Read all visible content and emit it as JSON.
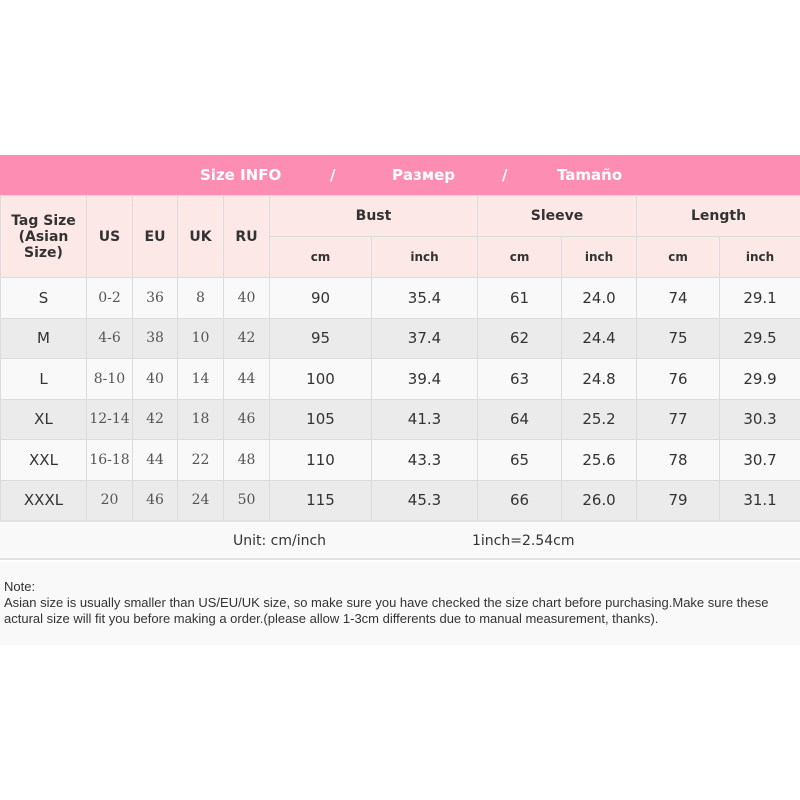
{
  "banner": {
    "title": "Size INFO",
    "sep1": "/",
    "ru": "Размер",
    "sep2": "/",
    "es": "Tamaño"
  },
  "headers": {
    "tag_size": "Tag Size (Asian Size)",
    "us": "US",
    "eu": "EU",
    "uk": "UK",
    "ru": "RU",
    "bust": "Bust",
    "sleeve": "Sleeve",
    "length": "Length",
    "cm": "cm",
    "inch": "inch"
  },
  "rows": [
    {
      "tag": "S",
      "us": "0-2",
      "eu": "36",
      "uk": "8",
      "ru": "40",
      "bust_cm": "90",
      "bust_in": "35.4",
      "sleeve_cm": "61",
      "sleeve_in": "24.0",
      "length_cm": "74",
      "length_in": "29.1"
    },
    {
      "tag": "M",
      "us": "4-6",
      "eu": "38",
      "uk": "10",
      "ru": "42",
      "bust_cm": "95",
      "bust_in": "37.4",
      "sleeve_cm": "62",
      "sleeve_in": "24.4",
      "length_cm": "75",
      "length_in": "29.5"
    },
    {
      "tag": "L",
      "us": "8-10",
      "eu": "40",
      "uk": "14",
      "ru": "44",
      "bust_cm": "100",
      "bust_in": "39.4",
      "sleeve_cm": "63",
      "sleeve_in": "24.8",
      "length_cm": "76",
      "length_in": "29.9"
    },
    {
      "tag": "XL",
      "us": "12-14",
      "eu": "42",
      "uk": "18",
      "ru": "46",
      "bust_cm": "105",
      "bust_in": "41.3",
      "sleeve_cm": "64",
      "sleeve_in": "25.2",
      "length_cm": "77",
      "length_in": "30.3"
    },
    {
      "tag": "XXL",
      "us": "16-18",
      "eu": "44",
      "uk": "22",
      "ru": "48",
      "bust_cm": "110",
      "bust_in": "43.3",
      "sleeve_cm": "65",
      "sleeve_in": "25.6",
      "length_cm": "78",
      "length_in": "30.7"
    },
    {
      "tag": "XXXL",
      "us": "20",
      "eu": "46",
      "uk": "24",
      "ru": "50",
      "bust_cm": "115",
      "bust_in": "45.3",
      "sleeve_cm": "66",
      "sleeve_in": "26.0",
      "length_cm": "79",
      "length_in": "31.1"
    }
  ],
  "unit": {
    "label": "Unit: cm/inch",
    "conversion": "1inch=2.54cm"
  },
  "note": {
    "title": "Note:",
    "text": "Asian size is usually smaller than US/EU/UK size, so make sure you have checked the size chart before purchasing.Make sure these actural size will fit you before making a order.(please allow 1-3cm differents due to manual measurement, thanks)."
  },
  "colors": {
    "banner": "#fe8db3",
    "header_bg": "#fde8e8",
    "row_alt": "#ebebeb"
  }
}
